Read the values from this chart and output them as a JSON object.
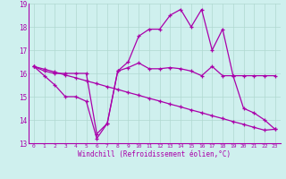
{
  "xlabel": "Windchill (Refroidissement éolien,°C)",
  "background_color": "#cff0ee",
  "line_color": "#aa00aa",
  "xlim": [
    -0.5,
    23.5
  ],
  "ylim": [
    13,
    19
  ],
  "xticks": [
    0,
    1,
    2,
    3,
    4,
    5,
    6,
    7,
    8,
    9,
    10,
    11,
    12,
    13,
    14,
    15,
    16,
    17,
    18,
    19,
    20,
    21,
    22,
    23
  ],
  "yticks": [
    13,
    14,
    15,
    16,
    17,
    18,
    19
  ],
  "grid_color": "#b0d8d0",
  "series": [
    {
      "x": [
        0,
        1,
        2,
        3,
        4,
        5,
        6,
        7,
        8,
        9,
        10,
        11,
        12,
        13,
        14,
        15,
        16,
        17,
        18,
        19,
        20,
        21,
        22,
        23
      ],
      "y": [
        16.3,
        16.1,
        16.0,
        16.0,
        16.0,
        16.0,
        13.4,
        13.85,
        16.1,
        16.25,
        16.45,
        16.2,
        16.2,
        16.25,
        16.2,
        16.1,
        15.9,
        16.3,
        15.9,
        15.9,
        15.9,
        15.9,
        15.9,
        15.9
      ]
    },
    {
      "x": [
        0,
        1,
        2,
        3,
        4,
        5,
        6,
        7,
        8,
        9,
        10,
        11,
        12,
        13,
        14,
        15,
        16,
        17,
        18,
        19,
        20,
        21,
        22,
        23
      ],
      "y": [
        16.3,
        15.9,
        15.5,
        15.0,
        15.0,
        14.8,
        13.2,
        13.85,
        16.1,
        16.5,
        17.6,
        17.9,
        17.9,
        18.5,
        18.75,
        18.0,
        18.75,
        17.0,
        17.9,
        15.9,
        14.5,
        14.3,
        14.0,
        13.6
      ]
    },
    {
      "x": [
        0,
        1,
        2,
        3,
        4,
        5,
        6,
        7,
        8,
        9,
        10,
        11,
        12,
        13,
        14,
        15,
        16,
        17,
        18,
        19,
        20,
        21,
        22,
        23
      ],
      "y": [
        16.3,
        16.18,
        16.06,
        15.93,
        15.81,
        15.68,
        15.56,
        15.43,
        15.31,
        15.18,
        15.06,
        14.93,
        14.81,
        14.68,
        14.56,
        14.43,
        14.31,
        14.18,
        14.06,
        13.93,
        13.81,
        13.68,
        13.56,
        13.6
      ]
    }
  ]
}
